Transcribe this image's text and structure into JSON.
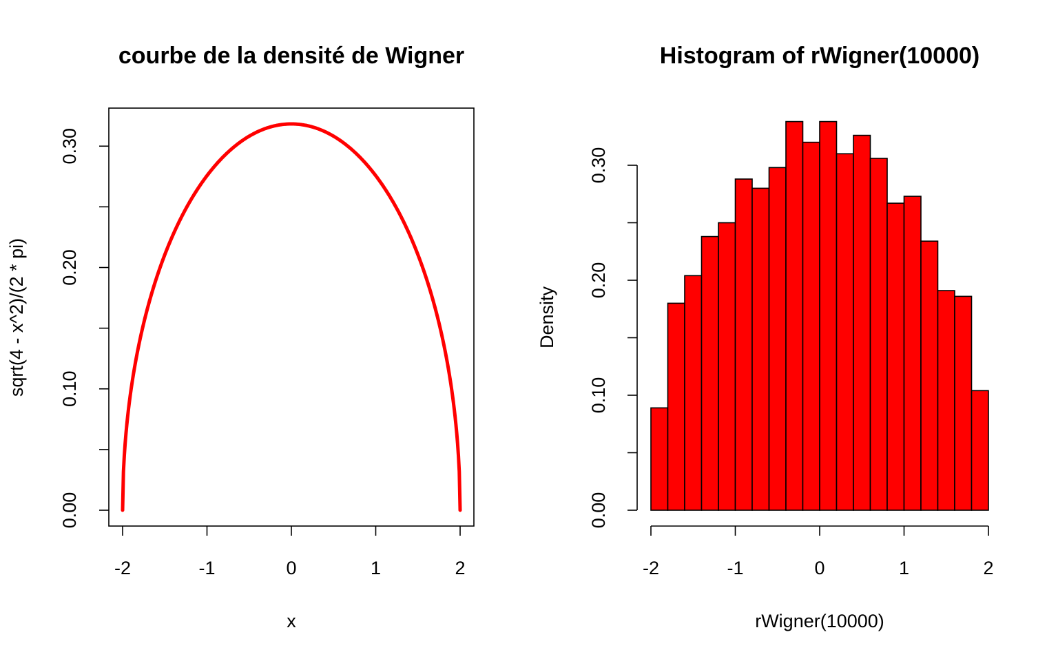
{
  "chart_data": [
    {
      "type": "line",
      "title": "courbe de la densité de Wigner",
      "xlabel": "x",
      "ylabel": "sqrt(4 - x^2)/(2 * pi)",
      "xlim": [
        -2,
        2
      ],
      "ylim": [
        0,
        0.3183
      ],
      "x_ticks": [
        -2,
        -1,
        0,
        1,
        2
      ],
      "x_tick_labels": [
        "-2",
        "-1",
        "0",
        "1",
        "2"
      ],
      "y_ticks": [
        0,
        0.05,
        0.1,
        0.15,
        0.2,
        0.25,
        0.3
      ],
      "y_tick_labels": [
        "0.00",
        "",
        "0.10",
        "",
        "0.20",
        "",
        "0.30"
      ],
      "function": "sqrt(4 - x^2)/(2 * pi)",
      "color": "#ff0000",
      "box": true,
      "grid": false
    },
    {
      "type": "bar",
      "title": "Histogram of rWigner(10000)",
      "xlabel": "rWigner(10000)",
      "ylabel": "Density",
      "xlim": [
        -2,
        2
      ],
      "ylim": [
        0,
        0.34
      ],
      "x_ticks": [
        -2,
        -1,
        0,
        1,
        2
      ],
      "x_tick_labels": [
        "-2",
        "-1",
        "0",
        "1",
        "2"
      ],
      "y_ticks": [
        0,
        0.05,
        0.1,
        0.15,
        0.2,
        0.25,
        0.3
      ],
      "y_tick_labels": [
        "0.00",
        "",
        "0.10",
        "",
        "0.20",
        "",
        "0.30"
      ],
      "bin_edges": [
        -2.0,
        -1.8,
        -1.6,
        -1.4,
        -1.2,
        -1.0,
        -0.8,
        -0.6,
        -0.4,
        -0.2,
        0.0,
        0.2,
        0.4,
        0.6,
        0.8,
        1.0,
        1.2,
        1.4,
        1.6,
        1.8,
        2.0
      ],
      "values": [
        0.089,
        0.18,
        0.204,
        0.238,
        0.25,
        0.288,
        0.28,
        0.298,
        0.338,
        0.32,
        0.338,
        0.31,
        0.326,
        0.306,
        0.267,
        0.273,
        0.234,
        0.191,
        0.186,
        0.104
      ],
      "color": "#ff0000",
      "box": false,
      "grid": false
    }
  ]
}
